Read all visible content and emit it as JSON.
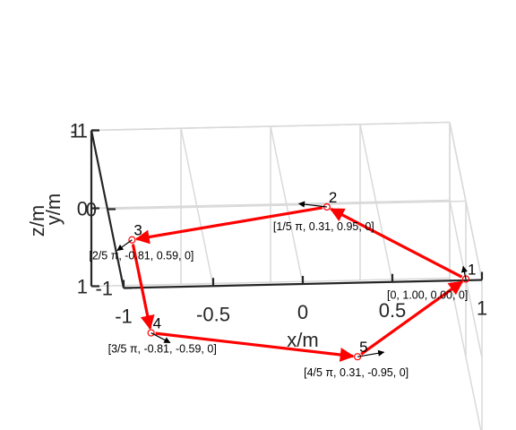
{
  "chart_data": {
    "type": "line3d",
    "title": "",
    "xlabel": "x/m",
    "ylabel": "y/m",
    "zlabel": "z/m",
    "xlim": [
      -1,
      1
    ],
    "ylim": [
      -1,
      1
    ],
    "zlim": [
      -1,
      1
    ],
    "x_ticks": [
      "-1",
      "-0.5",
      "0",
      "0.5",
      "1"
    ],
    "y_ticks": [
      "-1",
      "0",
      "1"
    ],
    "z_ticks": [
      "-1",
      "0",
      "1"
    ],
    "grid": true,
    "path_color": "#ff0000",
    "normal_color": "#000000",
    "closed": true,
    "points": [
      {
        "id": "1",
        "x": 1.0,
        "y": 0.0,
        "z": 0,
        "label": "[0, 1.00, 0.00, 0]"
      },
      {
        "id": "2",
        "x": 0.31,
        "y": 0.95,
        "z": 0,
        "label": "[1/5 π, 0.31, 0.95, 0]"
      },
      {
        "id": "3",
        "x": -0.81,
        "y": 0.59,
        "z": 0,
        "label": "[2/5 π, -0.81, 0.59, 0]"
      },
      {
        "id": "4",
        "x": -0.81,
        "y": -0.59,
        "z": 0,
        "label": "[3/5 π, -0.81, -0.59, 0]"
      },
      {
        "id": "5",
        "x": 0.31,
        "y": -0.95,
        "z": 0,
        "label": "[4/5 π, 0.31, -0.95, 0]"
      }
    ]
  }
}
